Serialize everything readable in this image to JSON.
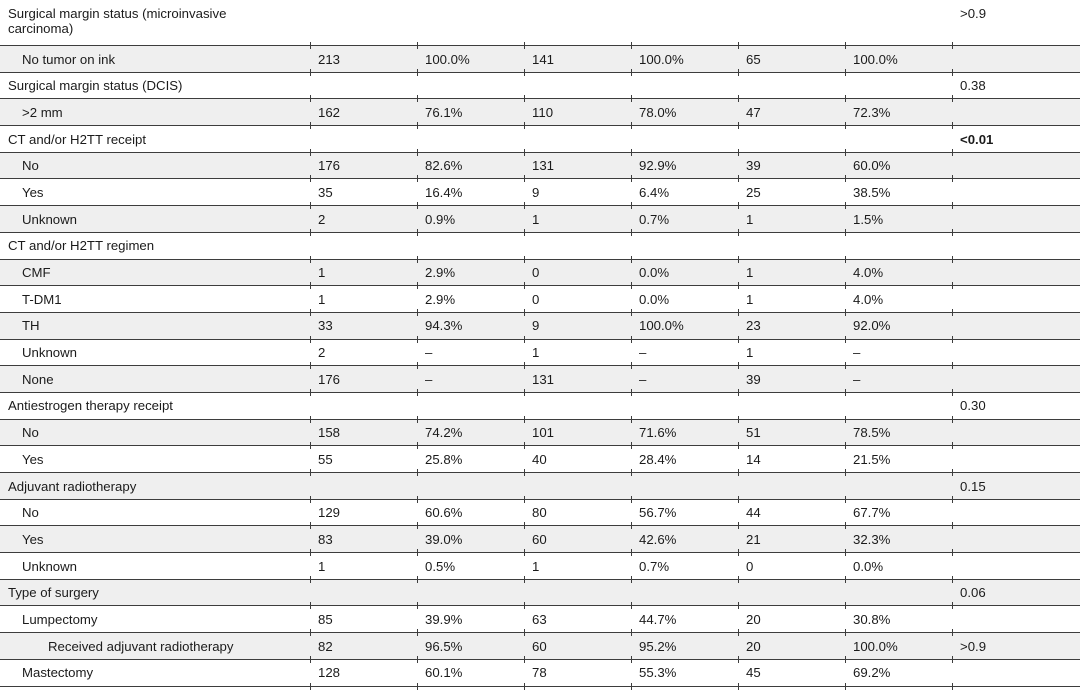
{
  "colors": {
    "row_shade": "#efefef",
    "rule": "#3d3d3d",
    "text": "#1b1b1b"
  },
  "table": {
    "rows": [
      {
        "label": "Surgical margin status (microinvasive carcinoma)",
        "indent": 0,
        "cells": [],
        "p": ">0.9",
        "p_bold": false
      },
      {
        "label": "No tumor on ink",
        "indent": 1,
        "cells": [
          "213",
          "100.0%",
          "141",
          "100.0%",
          "65",
          "100.0%"
        ],
        "p": "",
        "p_bold": false
      },
      {
        "label": "Surgical margin status (DCIS)",
        "indent": 0,
        "cells": [],
        "p": "0.38",
        "p_bold": false
      },
      {
        "label": ">2 mm",
        "indent": 1,
        "cells": [
          "162",
          "76.1%",
          "110",
          "78.0%",
          "47",
          "72.3%"
        ],
        "p": "",
        "p_bold": false
      },
      {
        "label": "CT and/or H2TT receipt",
        "indent": 0,
        "cells": [],
        "p": "<0.01",
        "p_bold": true
      },
      {
        "label": "No",
        "indent": 1,
        "cells": [
          "176",
          "82.6%",
          "131",
          "92.9%",
          "39",
          "60.0%"
        ],
        "p": "",
        "p_bold": false
      },
      {
        "label": "Yes",
        "indent": 1,
        "cells": [
          "35",
          "16.4%",
          "9",
          "6.4%",
          "25",
          "38.5%"
        ],
        "p": "",
        "p_bold": false
      },
      {
        "label": "Unknown",
        "indent": 1,
        "cells": [
          "2",
          "0.9%",
          "1",
          "0.7%",
          "1",
          "1.5%"
        ],
        "p": "",
        "p_bold": false
      },
      {
        "label": "CT and/or H2TT regimen",
        "indent": 0,
        "cells": [],
        "p": "",
        "p_bold": false
      },
      {
        "label": "CMF",
        "indent": 1,
        "cells": [
          "1",
          "2.9%",
          "0",
          "0.0%",
          "1",
          "4.0%"
        ],
        "p": "",
        "p_bold": false
      },
      {
        "label": "T-DM1",
        "indent": 1,
        "cells": [
          "1",
          "2.9%",
          "0",
          "0.0%",
          "1",
          "4.0%"
        ],
        "p": "",
        "p_bold": false
      },
      {
        "label": "TH",
        "indent": 1,
        "cells": [
          "33",
          "94.3%",
          "9",
          "100.0%",
          "23",
          "92.0%"
        ],
        "p": "",
        "p_bold": false
      },
      {
        "label": "Unknown",
        "indent": 1,
        "cells": [
          "2",
          "–",
          "1",
          "–",
          "1",
          "–"
        ],
        "p": "",
        "p_bold": false
      },
      {
        "label": "None",
        "indent": 1,
        "cells": [
          "176",
          "–",
          "131",
          "–",
          "39",
          "–"
        ],
        "p": "",
        "p_bold": false
      },
      {
        "label": "Antiestrogen therapy receipt",
        "indent": 0,
        "cells": [],
        "p": "0.30",
        "p_bold": false
      },
      {
        "label": "No",
        "indent": 1,
        "cells": [
          "158",
          "74.2%",
          "101",
          "71.6%",
          "51",
          "78.5%"
        ],
        "p": "",
        "p_bold": false
      },
      {
        "label": "Yes",
        "indent": 1,
        "cells": [
          "55",
          "25.8%",
          "40",
          "28.4%",
          "14",
          "21.5%"
        ],
        "p": "",
        "p_bold": false
      },
      {
        "label": "Adjuvant radiotherapy",
        "indent": 0,
        "cells": [],
        "p": "0.15",
        "p_bold": false
      },
      {
        "label": "No",
        "indent": 1,
        "cells": [
          "129",
          "60.6%",
          "80",
          "56.7%",
          "44",
          "67.7%"
        ],
        "p": "",
        "p_bold": false
      },
      {
        "label": "Yes",
        "indent": 1,
        "cells": [
          "83",
          "39.0%",
          "60",
          "42.6%",
          "21",
          "32.3%"
        ],
        "p": "",
        "p_bold": false
      },
      {
        "label": "Unknown",
        "indent": 1,
        "cells": [
          "1",
          "0.5%",
          "1",
          "0.7%",
          "0",
          "0.0%"
        ],
        "p": "",
        "p_bold": false
      },
      {
        "label": "Type of surgery",
        "indent": 0,
        "cells": [],
        "p": "0.06",
        "p_bold": false
      },
      {
        "label": "Lumpectomy",
        "indent": 1,
        "cells": [
          "85",
          "39.9%",
          "63",
          "44.7%",
          "20",
          "30.8%"
        ],
        "p": "",
        "p_bold": false
      },
      {
        "label": "Received adjuvant radiotherapy",
        "indent": 2,
        "cells": [
          "82",
          "96.5%",
          "60",
          "95.2%",
          "20",
          "100.0%"
        ],
        "p": ">0.9",
        "p_bold": false
      },
      {
        "label": "Mastectomy",
        "indent": 1,
        "cells": [
          "128",
          "60.1%",
          "78",
          "55.3%",
          "45",
          "69.2%"
        ],
        "p": "",
        "p_bold": false
      }
    ]
  }
}
